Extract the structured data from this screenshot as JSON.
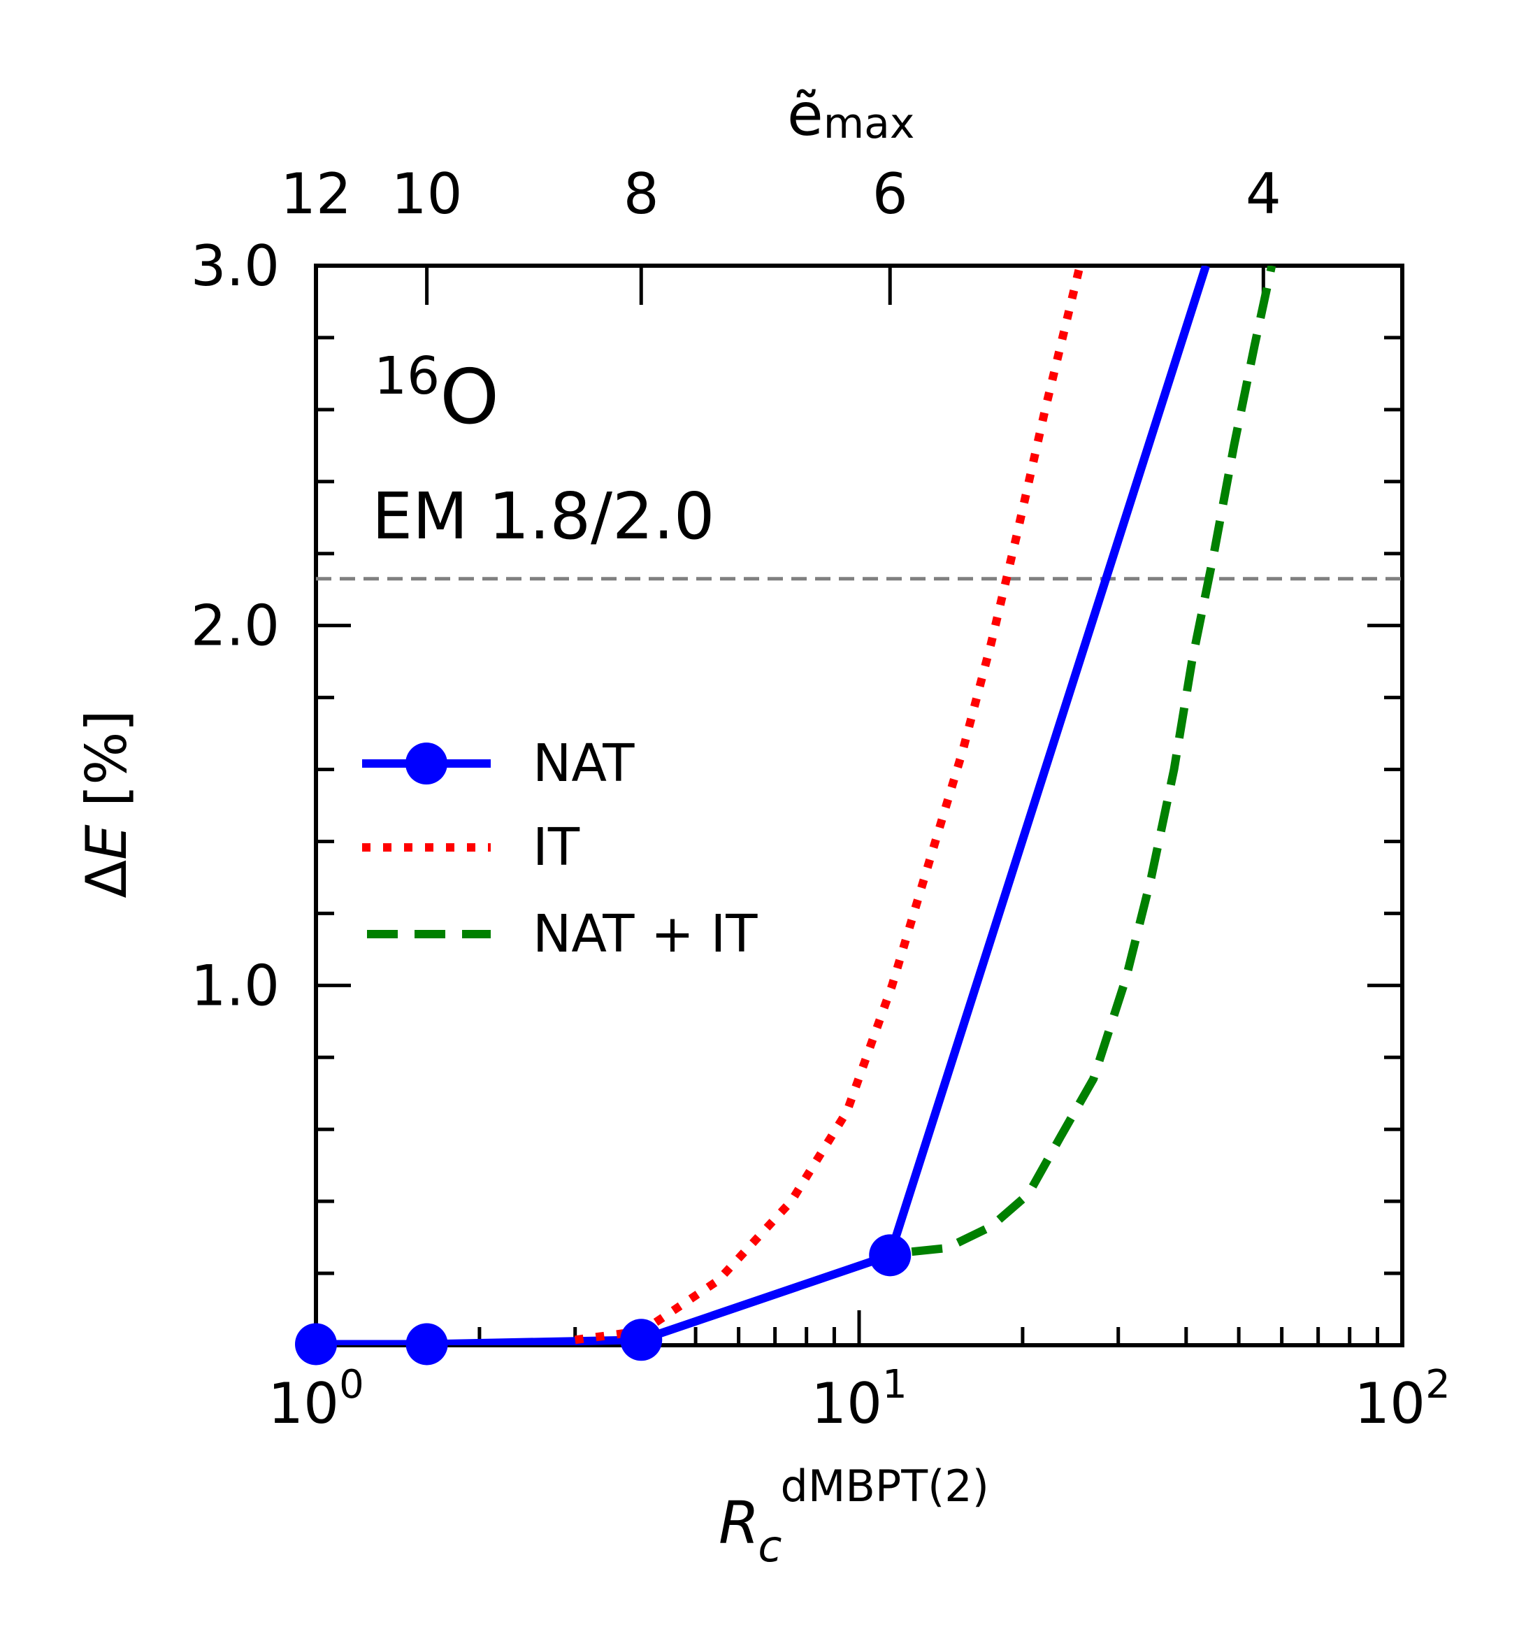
{
  "chart_data": {
    "type": "line",
    "x_scale": "log",
    "xlim": [
      1,
      100
    ],
    "ylim": [
      0.0,
      3.0
    ],
    "xlabel_main": "R",
    "xlabel_sub": "c",
    "xlabel_sup": "dMBPT(2)",
    "ylabel": "ΔE [%]",
    "ylabel_delta": "Δ",
    "ylabel_var": "E",
    "ylabel_unit": " [%]",
    "x_ticks": [
      {
        "value": 1,
        "base": "10",
        "exp": "0"
      },
      {
        "value": 10,
        "base": "10",
        "exp": "1"
      },
      {
        "value": 100,
        "base": "10",
        "exp": "2"
      }
    ],
    "y_ticks": [
      {
        "value": 1.0,
        "label": "1.0"
      },
      {
        "value": 2.0,
        "label": "2.0"
      },
      {
        "value": 3.0,
        "label": "3.0"
      }
    ],
    "y_minor_step": 0.2,
    "top_axis": {
      "label_base": "ẽ",
      "label_sub": "max",
      "ticks": [
        {
          "label": "12",
          "x": 1.0
        },
        {
          "label": "10",
          "x": 1.6
        },
        {
          "label": "8",
          "x": 3.97
        },
        {
          "label": "6",
          "x": 11.4
        },
        {
          "label": "4",
          "x": 55.5
        }
      ]
    },
    "annotations": {
      "nucleus_mass": "16",
      "nucleus_symbol": "O",
      "interaction": "EM 1.8/2.0"
    },
    "reference_line": {
      "y": 2.13,
      "color": "#808080",
      "style": "dashed"
    },
    "series": [
      {
        "name": "NAT",
        "color": "#0000ff",
        "style": "solid-markers",
        "x": [
          1.0,
          1.6,
          3.97,
          11.4,
          43.5
        ],
        "y": [
          0.003,
          0.003,
          0.015,
          0.25,
          3.0
        ],
        "markers_x": [
          1.0,
          1.6,
          3.97,
          11.4
        ],
        "markers_y": [
          0.003,
          0.003,
          0.015,
          0.25
        ]
      },
      {
        "name": "IT",
        "color": "#ff0000",
        "style": "dotted",
        "x": [
          3.0,
          4.0,
          5.5,
          7.5,
          9.5,
          11.5,
          13.5,
          15.5,
          17.5,
          19.5,
          22.0,
          25.5
        ],
        "y": [
          0.015,
          0.04,
          0.18,
          0.4,
          0.65,
          1.0,
          1.35,
          1.65,
          1.95,
          2.25,
          2.6,
          3.0
        ]
      },
      {
        "name": "NAT + IT",
        "color": "#008000",
        "style": "dashed",
        "x": [
          12.5,
          14.5,
          17.5,
          20.5,
          23.5,
          27.0,
          31.0,
          34.5,
          38.0,
          41.0,
          45.0,
          49.0,
          53.5,
          57.5
        ],
        "y": [
          0.26,
          0.27,
          0.33,
          0.42,
          0.58,
          0.74,
          1.02,
          1.3,
          1.6,
          1.9,
          2.2,
          2.5,
          2.78,
          3.0
        ]
      }
    ]
  }
}
